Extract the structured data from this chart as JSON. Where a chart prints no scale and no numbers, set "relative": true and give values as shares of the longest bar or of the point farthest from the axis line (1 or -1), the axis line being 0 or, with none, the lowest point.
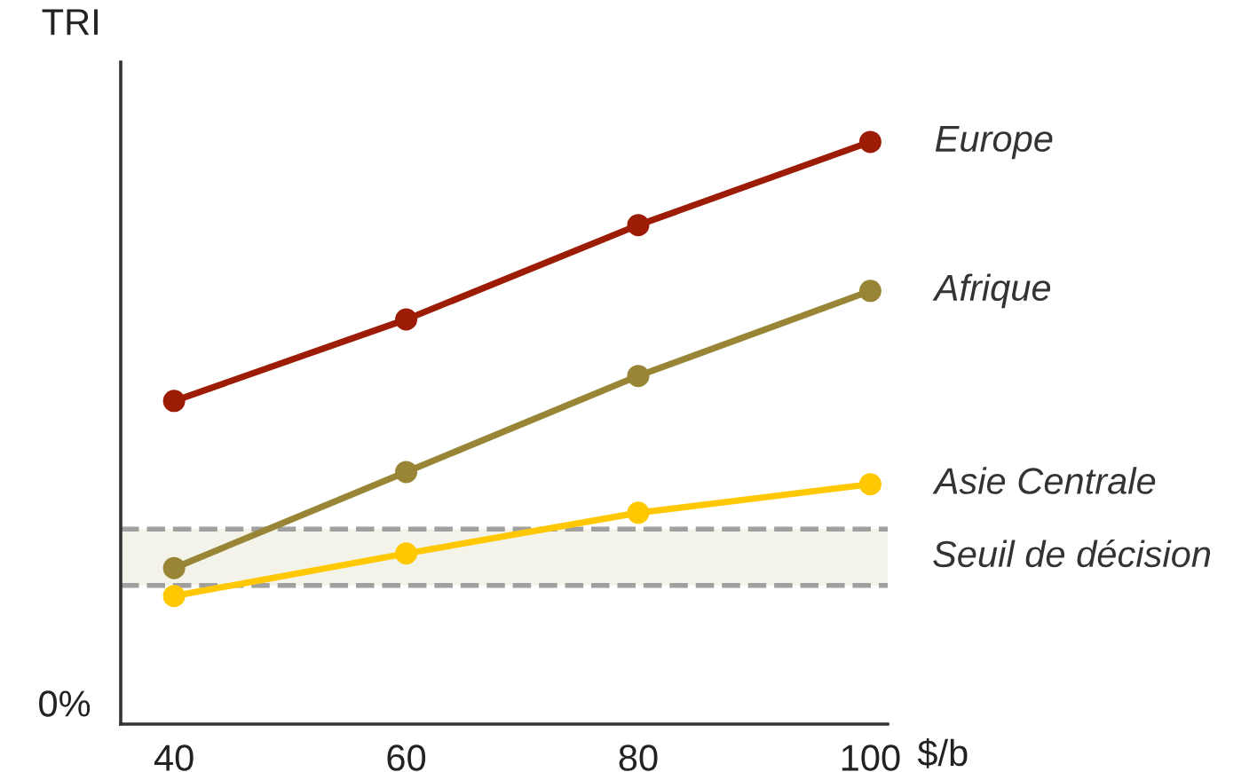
{
  "chart_data": {
    "type": "line",
    "relative": true,
    "ylabel": "TRI",
    "xlabel": "$/b",
    "x": [
      40,
      60,
      80,
      100
    ],
    "xlim": [
      35.4,
      101.5
    ],
    "xticks": [
      40,
      60,
      80,
      100
    ],
    "series": [
      {
        "name": "Europe",
        "color": "#9c1c05",
        "values": [
          0.555,
          0.695,
          0.857,
          1
        ]
      },
      {
        "name": "Afrique",
        "color": "#988535",
        "values": [
          0.268,
          0.433,
          0.598,
          0.744
        ]
      },
      {
        "name": "Asie Centrale",
        "color": "#ffc800",
        "values": [
          0.22,
          0.293,
          0.363,
          0.412
        ]
      }
    ],
    "bands": [
      {
        "axis": "y",
        "from": 0.238,
        "to": 0.335,
        "label": "Seuil de décision",
        "color": "#f3f3ea"
      }
    ],
    "ref_lines": [
      {
        "axis": "y",
        "value": 0.238,
        "color": "#a0a0a0",
        "line_style": "dashed"
      },
      {
        "axis": "y",
        "value": 0.335,
        "color": "#a0a0a0",
        "line_style": "dashed"
      }
    ],
    "annotations": [
      "0%"
    ],
    "marker": "circle",
    "line_style": "solid",
    "grid": false,
    "legend": false
  }
}
